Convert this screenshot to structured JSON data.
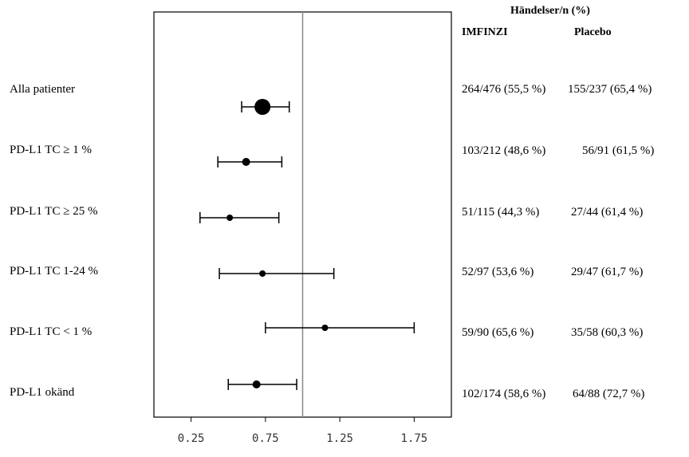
{
  "header": {
    "events_title": "Händelser/n (%)",
    "col_imfinzi": "IMFINZI",
    "col_placebo": "Placebo"
  },
  "rows": [
    {
      "label": "Alla patienter",
      "imfinzi": "264/476 (55,5 %)",
      "placebo": "155/237 (65,4 %)"
    },
    {
      "label": "PD-L1 TC  ≥ 1 %",
      "imfinzi": "103/212 (48,6 %)",
      "placebo": "56/91 (61,5 %)"
    },
    {
      "label": "PD-L1 TC ≥ 25 %",
      "imfinzi": "51/115 (44,3 %)",
      "placebo": "27/44 (61,4 %)"
    },
    {
      "label": "PD-L1 TC 1-24 %",
      "imfinzi": "52/97 (53,6 %)",
      "placebo": "29/47 (61,7 %)"
    },
    {
      "label": "PD-L1 TC < 1 %",
      "imfinzi": "59/90 (65,6 %)",
      "placebo": "35/58 (60,3 %)"
    },
    {
      "label": "PD-L1 okänd",
      "imfinzi": "102/174 (58,6 %)",
      "placebo": "64/88 (72,7 %)"
    }
  ],
  "chart_data": {
    "type": "forest",
    "xlim": [
      0.0,
      2.0
    ],
    "reference_line": 1.0,
    "ticks": [
      {
        "value": 0.25,
        "label": "0.25"
      },
      {
        "value": 0.75,
        "label": "0.75"
      },
      {
        "value": 1.25,
        "label": "1.25"
      },
      {
        "value": 1.75,
        "label": "1.75"
      }
    ],
    "estimates": [
      {
        "label": "Alla patienter",
        "hr": 0.73,
        "ci": [
          0.59,
          0.91
        ]
      },
      {
        "label": "PD-L1 TC  ≥ 1 %",
        "hr": 0.62,
        "ci": [
          0.43,
          0.86
        ]
      },
      {
        "label": "PD-L1 TC ≥ 25 %",
        "hr": 0.51,
        "ci": [
          0.31,
          0.84
        ]
      },
      {
        "label": "PD-L1 TC 1-24 %",
        "hr": 0.73,
        "ci": [
          0.44,
          1.21
        ]
      },
      {
        "label": "PD-L1 TC < 1 %",
        "hr": 1.15,
        "ci": [
          0.75,
          1.75
        ]
      },
      {
        "label": "PD-L1 okänd",
        "hr": 0.69,
        "ci": [
          0.5,
          0.96
        ]
      }
    ],
    "colors": {
      "marker": "#000000",
      "reference": "#888888",
      "frame": "#000000"
    }
  }
}
